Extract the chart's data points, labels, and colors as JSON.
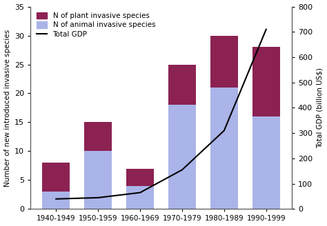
{
  "categories": [
    "1940-1949",
    "1950-1959",
    "1960-1969",
    "1970-1979",
    "1980-1989",
    "1990-1999"
  ],
  "animal_species": [
    3,
    10,
    4,
    18,
    21,
    16
  ],
  "plant_species": [
    5,
    5,
    3,
    7,
    9,
    12
  ],
  "gdp": [
    40,
    45,
    65,
    155,
    310,
    710
  ],
  "animal_color": "#aab4e8",
  "plant_color": "#8b2252",
  "gdp_color": "#000000",
  "ylabel_left": "Number of new introduced invasive species",
  "ylabel_right": "Total GDP (billion US$)",
  "ylim_left": [
    0,
    35
  ],
  "ylim_right": [
    0,
    800
  ],
  "yticks_left": [
    0,
    5,
    10,
    15,
    20,
    25,
    30,
    35
  ],
  "yticks_right": [
    0,
    100,
    200,
    300,
    400,
    500,
    600,
    700,
    800
  ],
  "legend_plant": "N of plant invasive species",
  "legend_animal": "N of animal invasive species",
  "legend_gdp": "Total GDP",
  "bg_color": "#ffffff"
}
